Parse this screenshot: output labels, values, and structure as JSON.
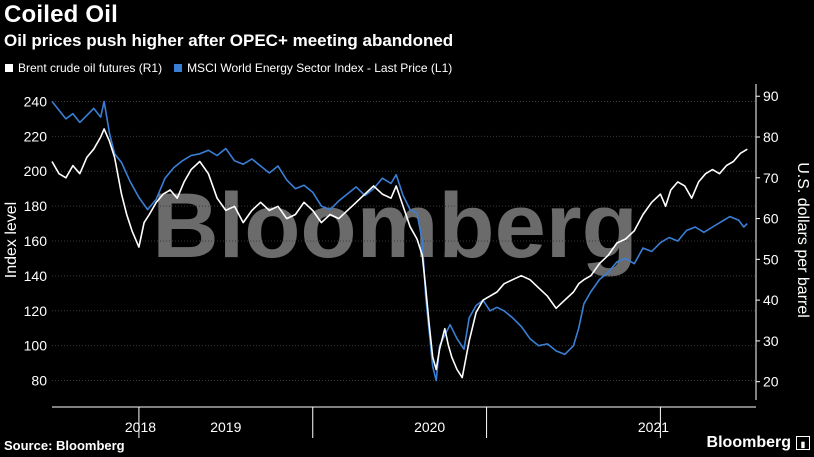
{
  "header": {
    "title": "Coiled Oil",
    "subtitle": "Oil prices push higher after OPEC+ meeting abandoned"
  },
  "legend": [
    {
      "label": "Brent crude oil futures (R1)",
      "color": "#ffffff"
    },
    {
      "label": "MSCI World Energy Sector Index - Last Price (L1)",
      "color": "#3a7fd5"
    }
  ],
  "footer": {
    "source": "Source: Bloomberg",
    "brand": "Bloomberg"
  },
  "watermark": "Bloomberg",
  "chart_data": {
    "type": "line",
    "x_ticks": [
      "2018",
      "2019",
      "2020",
      "2021"
    ],
    "y_left": {
      "label": "Index level",
      "range": [
        70,
        250
      ],
      "ticks": [
        80,
        100,
        120,
        140,
        160,
        180,
        200,
        220,
        240
      ]
    },
    "y_right": {
      "label": "U.S. dollars per barrel",
      "range": [
        16,
        93
      ],
      "ticks": [
        20,
        30,
        40,
        50,
        60,
        70,
        80,
        90
      ]
    },
    "x_range": [
      2017.5,
      2021.55
    ],
    "series": [
      {
        "name": "MSCI World Energy Sector Index - Last Price (L1)",
        "axis": "left",
        "color": "#3a7fd5",
        "points": [
          [
            2017.5,
            240
          ],
          [
            2017.54,
            235
          ],
          [
            2017.58,
            230
          ],
          [
            2017.62,
            233
          ],
          [
            2017.66,
            228
          ],
          [
            2017.7,
            232
          ],
          [
            2017.74,
            236
          ],
          [
            2017.78,
            231
          ],
          [
            2017.8,
            240
          ],
          [
            2017.83,
            222
          ],
          [
            2017.86,
            210
          ],
          [
            2017.9,
            205
          ],
          [
            2017.95,
            194
          ],
          [
            2018.0,
            185
          ],
          [
            2018.05,
            178
          ],
          [
            2018.1,
            184
          ],
          [
            2018.15,
            196
          ],
          [
            2018.2,
            202
          ],
          [
            2018.25,
            206
          ],
          [
            2018.3,
            209
          ],
          [
            2018.35,
            210
          ],
          [
            2018.4,
            212
          ],
          [
            2018.45,
            209
          ],
          [
            2018.5,
            213
          ],
          [
            2018.55,
            206
          ],
          [
            2018.6,
            204
          ],
          [
            2018.65,
            207
          ],
          [
            2018.7,
            203
          ],
          [
            2018.75,
            199
          ],
          [
            2018.8,
            203
          ],
          [
            2018.85,
            195
          ],
          [
            2018.9,
            190
          ],
          [
            2018.95,
            192
          ],
          [
            2019.0,
            188
          ],
          [
            2019.05,
            180
          ],
          [
            2019.1,
            178
          ],
          [
            2019.15,
            183
          ],
          [
            2019.2,
            187
          ],
          [
            2019.25,
            191
          ],
          [
            2019.3,
            186
          ],
          [
            2019.35,
            190
          ],
          [
            2019.4,
            196
          ],
          [
            2019.45,
            193
          ],
          [
            2019.48,
            198
          ],
          [
            2019.52,
            186
          ],
          [
            2019.56,
            178
          ],
          [
            2019.6,
            176
          ],
          [
            2019.63,
            160
          ],
          [
            2019.65,
            128
          ],
          [
            2019.67,
            108
          ],
          [
            2019.69,
            88
          ],
          [
            2019.71,
            80
          ],
          [
            2019.73,
            100
          ],
          [
            2019.76,
            106
          ],
          [
            2019.79,
            112
          ],
          [
            2019.83,
            104
          ],
          [
            2019.87,
            98
          ],
          [
            2019.9,
            116
          ],
          [
            2019.94,
            123
          ],
          [
            2019.98,
            126
          ],
          [
            2020.02,
            120
          ],
          [
            2020.06,
            122
          ],
          [
            2020.1,
            120
          ],
          [
            2020.15,
            116
          ],
          [
            2020.2,
            111
          ],
          [
            2020.25,
            104
          ],
          [
            2020.3,
            100
          ],
          [
            2020.35,
            101
          ],
          [
            2020.4,
            97
          ],
          [
            2020.45,
            95
          ],
          [
            2020.5,
            100
          ],
          [
            2020.53,
            110
          ],
          [
            2020.56,
            124
          ],
          [
            2020.6,
            131
          ],
          [
            2020.65,
            138
          ],
          [
            2020.7,
            142
          ],
          [
            2020.75,
            148
          ],
          [
            2020.8,
            150
          ],
          [
            2020.85,
            147
          ],
          [
            2020.9,
            156
          ],
          [
            2020.95,
            154
          ],
          [
            2021.0,
            159
          ],
          [
            2021.05,
            162
          ],
          [
            2021.1,
            160
          ],
          [
            2021.15,
            166
          ],
          [
            2021.2,
            168
          ],
          [
            2021.25,
            165
          ],
          [
            2021.3,
            168
          ],
          [
            2021.35,
            171
          ],
          [
            2021.4,
            174
          ],
          [
            2021.45,
            172
          ],
          [
            2021.48,
            168
          ],
          [
            2021.5,
            170
          ]
        ]
      },
      {
        "name": "Brent crude oil futures (R1)",
        "axis": "right",
        "color": "#ffffff",
        "points": [
          [
            2017.5,
            74
          ],
          [
            2017.54,
            71
          ],
          [
            2017.58,
            70
          ],
          [
            2017.62,
            73
          ],
          [
            2017.66,
            71
          ],
          [
            2017.7,
            75
          ],
          [
            2017.74,
            77
          ],
          [
            2017.78,
            80
          ],
          [
            2017.8,
            82
          ],
          [
            2017.83,
            79
          ],
          [
            2017.86,
            75
          ],
          [
            2017.9,
            66
          ],
          [
            2017.93,
            61
          ],
          [
            2017.96,
            57
          ],
          [
            2018.0,
            53
          ],
          [
            2018.03,
            59
          ],
          [
            2018.06,
            61
          ],
          [
            2018.1,
            64
          ],
          [
            2018.14,
            66
          ],
          [
            2018.18,
            67
          ],
          [
            2018.22,
            65
          ],
          [
            2018.26,
            69
          ],
          [
            2018.3,
            72
          ],
          [
            2018.35,
            74
          ],
          [
            2018.4,
            71
          ],
          [
            2018.45,
            65
          ],
          [
            2018.5,
            62
          ],
          [
            2018.55,
            63
          ],
          [
            2018.6,
            59
          ],
          [
            2018.65,
            62
          ],
          [
            2018.7,
            64
          ],
          [
            2018.75,
            62
          ],
          [
            2018.8,
            63
          ],
          [
            2018.85,
            60
          ],
          [
            2018.9,
            61
          ],
          [
            2018.95,
            64
          ],
          [
            2019.0,
            62
          ],
          [
            2019.05,
            59
          ],
          [
            2019.1,
            61
          ],
          [
            2019.15,
            60
          ],
          [
            2019.2,
            62
          ],
          [
            2019.25,
            64
          ],
          [
            2019.3,
            66
          ],
          [
            2019.35,
            68
          ],
          [
            2019.4,
            66
          ],
          [
            2019.45,
            65
          ],
          [
            2019.48,
            68
          ],
          [
            2019.52,
            63
          ],
          [
            2019.56,
            58
          ],
          [
            2019.6,
            55
          ],
          [
            2019.63,
            51
          ],
          [
            2019.65,
            43
          ],
          [
            2019.67,
            34
          ],
          [
            2019.69,
            26
          ],
          [
            2019.71,
            23
          ],
          [
            2019.73,
            28
          ],
          [
            2019.76,
            33
          ],
          [
            2019.78,
            29
          ],
          [
            2019.8,
            26
          ],
          [
            2019.83,
            23
          ],
          [
            2019.86,
            21
          ],
          [
            2019.9,
            30
          ],
          [
            2019.94,
            37
          ],
          [
            2019.98,
            40
          ],
          [
            2020.02,
            41
          ],
          [
            2020.06,
            42
          ],
          [
            2020.1,
            44
          ],
          [
            2020.15,
            45
          ],
          [
            2020.2,
            46
          ],
          [
            2020.25,
            45
          ],
          [
            2020.3,
            43
          ],
          [
            2020.35,
            41
          ],
          [
            2020.4,
            38
          ],
          [
            2020.45,
            40
          ],
          [
            2020.5,
            42
          ],
          [
            2020.53,
            44
          ],
          [
            2020.56,
            45
          ],
          [
            2020.6,
            46
          ],
          [
            2020.65,
            49
          ],
          [
            2020.7,
            51
          ],
          [
            2020.75,
            54
          ],
          [
            2020.8,
            55
          ],
          [
            2020.85,
            57
          ],
          [
            2020.9,
            61
          ],
          [
            2020.95,
            64
          ],
          [
            2021.0,
            66
          ],
          [
            2021.03,
            63
          ],
          [
            2021.06,
            67
          ],
          [
            2021.1,
            69
          ],
          [
            2021.14,
            68
          ],
          [
            2021.18,
            65
          ],
          [
            2021.22,
            69
          ],
          [
            2021.26,
            71
          ],
          [
            2021.3,
            72
          ],
          [
            2021.34,
            71
          ],
          [
            2021.38,
            73
          ],
          [
            2021.42,
            74
          ],
          [
            2021.46,
            76
          ],
          [
            2021.5,
            77
          ]
        ]
      }
    ]
  }
}
